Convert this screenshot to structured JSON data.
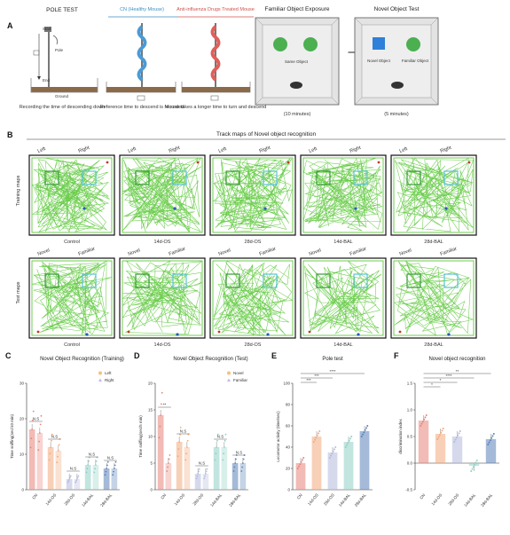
{
  "panelA": {
    "letter": "A",
    "pole_test_title": "POLE TEST",
    "pole_start": "Start",
    "pole_end": "End",
    "pole_label": "Pole",
    "ground_label": "Ground",
    "pole_caption": "Recording the time of descending down",
    "cn_title": "CN (Healthy Mouse)",
    "cn_caption": "Reference time to descend is recorded",
    "drug_title": "Anti-influenza Drugs Treated Mouse",
    "drug_caption": "Mouse takes a longer time to turn and descend",
    "familiar_title": "Familiar Object Exposure",
    "familiar_obj": "Same Object",
    "familiar_time": "(10 minutes)",
    "novel_title": "Novel Object Test",
    "novel_obj": "Novel Object",
    "novel_fam_obj": "Familiar Object",
    "novel_time": "(5 minutes)"
  },
  "panelB": {
    "letter": "B",
    "title": "Track maps of Novel object recognition",
    "training_label": "Training maps",
    "test_label": "Test maps",
    "training_left": "Left",
    "training_right": "Right",
    "test_novel": "Novel",
    "test_familiar": "Familiar",
    "groups": [
      "Control",
      "14d-OS",
      "28d-OS",
      "14d-BAL",
      "28d-BAL"
    ]
  },
  "colors": {
    "track": "#5cc83a",
    "green_obj": "#4caf50",
    "blue_obj": "#2f80d8",
    "cn": "#e8837a",
    "os14": "#f2a97c",
    "os28": "#b5b9dc",
    "bal14": "#8fd0c4",
    "bal28": "#5a82b8",
    "left": "#f4c27a",
    "right": "#c9b6de"
  },
  "chart_data": [
    {
      "id": "C",
      "letter": "C",
      "type": "bar",
      "title": "Novel Object Recognition (Training)",
      "ylabel": "Time sniffing(sec/10 min)",
      "ylim": [
        0,
        30
      ],
      "yticks": [
        0,
        10,
        20,
        30
      ],
      "categories": [
        "CN",
        "14d-OS",
        "28d-OS",
        "14d-BAL",
        "28d-BAL"
      ],
      "series": [
        {
          "name": "Left",
          "values": [
            17,
            12,
            3,
            7,
            6
          ]
        },
        {
          "name": "Right",
          "values": [
            16,
            11,
            3,
            7,
            6
          ]
        }
      ],
      "significance": [
        "N.S",
        "N.S",
        "N.S",
        "N.S",
        "N.S"
      ],
      "legend": "top-right"
    },
    {
      "id": "D",
      "letter": "D",
      "type": "bar",
      "title": "Novel Object Recognition (Test)",
      "ylabel": "Time sniffing(sec/5 min)",
      "ylim": [
        0,
        20
      ],
      "yticks": [
        0,
        5,
        10,
        15,
        20
      ],
      "categories": [
        "CN",
        "14d-OS",
        "28d-OS",
        "14d-BAL",
        "28d-BAL"
      ],
      "series": [
        {
          "name": "Novel",
          "values": [
            14,
            9,
            3,
            8,
            5
          ]
        },
        {
          "name": "Familiar",
          "values": [
            5,
            8,
            3,
            8,
            5
          ]
        }
      ],
      "significance": [
        "**",
        "N.S",
        "N.S",
        "N.S",
        "N.S"
      ],
      "legend": "top-right"
    },
    {
      "id": "E",
      "letter": "E",
      "type": "bar",
      "title": "Pole test",
      "ylabel": "Locomotor activity (time/sec)",
      "ylim": [
        0,
        100
      ],
      "yticks": [
        0,
        20,
        40,
        60,
        80,
        100
      ],
      "categories": [
        "CN",
        "14d-OS",
        "28d-OS",
        "14d-BAL",
        "28d-BAL"
      ],
      "values": [
        25,
        50,
        35,
        45,
        55
      ],
      "brackets": [
        {
          "from": 0,
          "to": 1,
          "label": "***"
        },
        {
          "from": 0,
          "to": 2,
          "label": "***"
        },
        {
          "from": 0,
          "to": 4,
          "label": "****"
        }
      ]
    },
    {
      "id": "F",
      "letter": "F",
      "type": "bar",
      "title": "Novel object recognition",
      "ylabel": "discrimination index",
      "ylim": [
        -0.5,
        1.5
      ],
      "yticks": [
        -0.5,
        0.0,
        0.5,
        1.0,
        1.5
      ],
      "categories": [
        "CN",
        "14d-OS",
        "28d-OS",
        "14d-BAL",
        "28d-BAL"
      ],
      "values": [
        0.8,
        0.55,
        0.5,
        -0.05,
        0.45
      ],
      "brackets": [
        {
          "from": 0,
          "to": 1,
          "label": "*"
        },
        {
          "from": 0,
          "to": 2,
          "label": "*"
        },
        {
          "from": 0,
          "to": 3,
          "label": "****"
        },
        {
          "from": 0,
          "to": 4,
          "label": "**"
        }
      ]
    }
  ]
}
